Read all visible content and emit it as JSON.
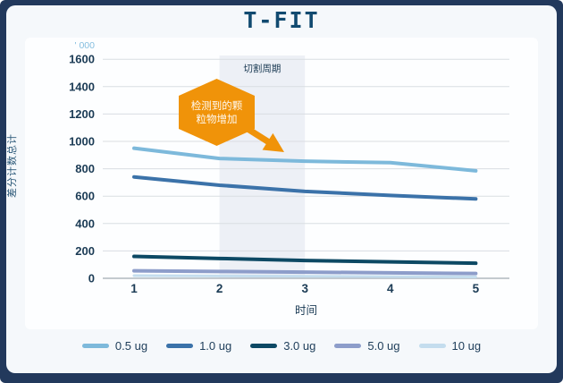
{
  "title": "T-FIT",
  "chart_data": {
    "type": "line",
    "title": "T-FIT",
    "xlabel": "时间",
    "ylabel": "差分计数总计",
    "y_unit_label": "' 000",
    "x": [
      1,
      2,
      3,
      4,
      5
    ],
    "x_tick_labels": [
      "1",
      "2",
      "3",
      "4",
      "5"
    ],
    "ylim": [
      0,
      1600
    ],
    "ytick_step": 200,
    "grid": true,
    "legend_position": "bottom",
    "series": [
      {
        "name": "0.5 ug",
        "color": "#7db9db",
        "values": [
          950,
          875,
          855,
          845,
          785
        ]
      },
      {
        "name": "1.0 ug",
        "color": "#3b72a9",
        "values": [
          740,
          680,
          635,
          605,
          580
        ]
      },
      {
        "name": "3.0 ug",
        "color": "#0d4964",
        "values": [
          160,
          145,
          130,
          120,
          110
        ]
      },
      {
        "name": "5.0 ug",
        "color": "#8d9dca",
        "values": [
          55,
          50,
          45,
          40,
          35
        ]
      },
      {
        "name": "10 ug",
        "color": "#c4ddee",
        "values": [
          20,
          17,
          15,
          12,
          10
        ]
      }
    ],
    "annotations": {
      "band": {
        "label": "切割周期",
        "x_from": 2,
        "x_to": 3,
        "fill": "#edf0f6",
        "label_color": "#1d3c55"
      },
      "callout": {
        "shape": "hexagon",
        "text_lines": [
          "检测到的颗",
          "粒物增加"
        ],
        "color": "#f09309",
        "text_color": "#ffffff",
        "points_at_x": 3
      }
    },
    "axis_text_color": "#1b3b55",
    "unit_label_color": "#85bedf",
    "gridline_color": "#dadde2",
    "zeroline_color": "#b2b8bf"
  }
}
